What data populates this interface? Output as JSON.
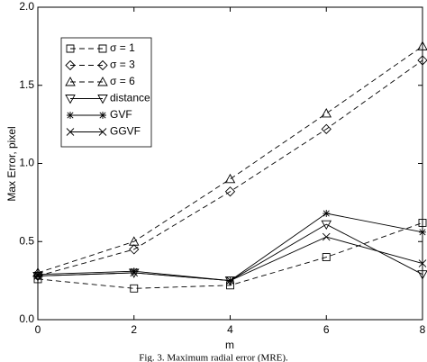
{
  "chart_data": {
    "type": "line",
    "x_label": "m",
    "y_label": "Max Error, pixel",
    "caption": "Fig. 3. Maximum radial error (MRE).",
    "x": [
      0,
      2,
      4,
      6,
      8
    ],
    "xlim": [
      0,
      8
    ],
    "xticks": [
      0,
      2,
      4,
      6,
      8
    ],
    "ylim": [
      0,
      2
    ],
    "yticks": [
      {
        "value": 0,
        "label": "0.0"
      },
      0.5,
      {
        "value": 1,
        "label": "1.0"
      },
      1.5,
      {
        "value": 2,
        "label": "2.0"
      }
    ],
    "legend": "upper left",
    "series": [
      {
        "name": "σ = 1",
        "color": "#000000",
        "marker": "square",
        "dashed": true,
        "values": [
          0.26,
          0.2,
          0.22,
          0.4,
          0.62
        ]
      },
      {
        "name": "σ = 3",
        "color": "#000000",
        "marker": "diamond",
        "dashed": true,
        "values": [
          0.28,
          0.45,
          0.82,
          1.22,
          1.66
        ]
      },
      {
        "name": "σ = 6",
        "color": "#000000",
        "marker": "triangle",
        "dashed": true,
        "values": [
          0.3,
          0.5,
          0.9,
          1.32,
          1.75
        ]
      },
      {
        "name": "distance",
        "color": "#000000",
        "marker": "triangle-down",
        "dashed": false,
        "values": [
          0.28,
          0.3,
          0.25,
          0.61,
          0.29
        ]
      },
      {
        "name": "GVF",
        "color": "#000000",
        "marker": "star",
        "dashed": false,
        "values": [
          0.29,
          0.31,
          0.25,
          0.68,
          0.56
        ]
      },
      {
        "name": "GGVF",
        "color": "#000000",
        "marker": "x",
        "dashed": false,
        "values": [
          0.28,
          0.3,
          0.25,
          0.53,
          0.36
        ]
      }
    ]
  }
}
